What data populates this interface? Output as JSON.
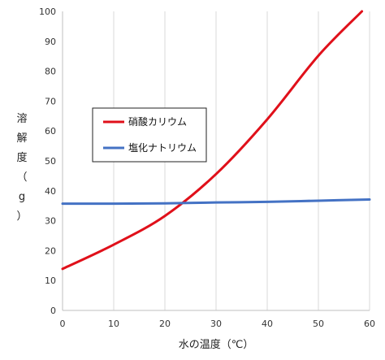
{
  "chart_data": {
    "type": "line",
    "xlabel": "水の温度（℃）",
    "ylabel": "溶解度（g）",
    "xlim": [
      0,
      60
    ],
    "ylim": [
      0,
      100
    ],
    "xticks": [
      "0",
      "10",
      "20",
      "30",
      "40",
      "50",
      "60"
    ],
    "yticks": [
      "0",
      "10",
      "20",
      "30",
      "40",
      "50",
      "60",
      "70",
      "80",
      "90",
      "100"
    ],
    "grid": "vertical",
    "legend_position": "center-left",
    "series": [
      {
        "name": "硝酸カリウム",
        "color": "#e0101a",
        "x": [
          0,
          10,
          20,
          30,
          40,
          50,
          58.5
        ],
        "y": [
          13.9,
          22,
          31.6,
          45.6,
          63.9,
          85.2,
          100
        ]
      },
      {
        "name": "塩化ナトリウム",
        "color": "#4472c4",
        "x": [
          0,
          10,
          20,
          30,
          40,
          50,
          60
        ],
        "y": [
          35.7,
          35.7,
          35.8,
          36.1,
          36.3,
          36.7,
          37.1
        ]
      }
    ]
  }
}
